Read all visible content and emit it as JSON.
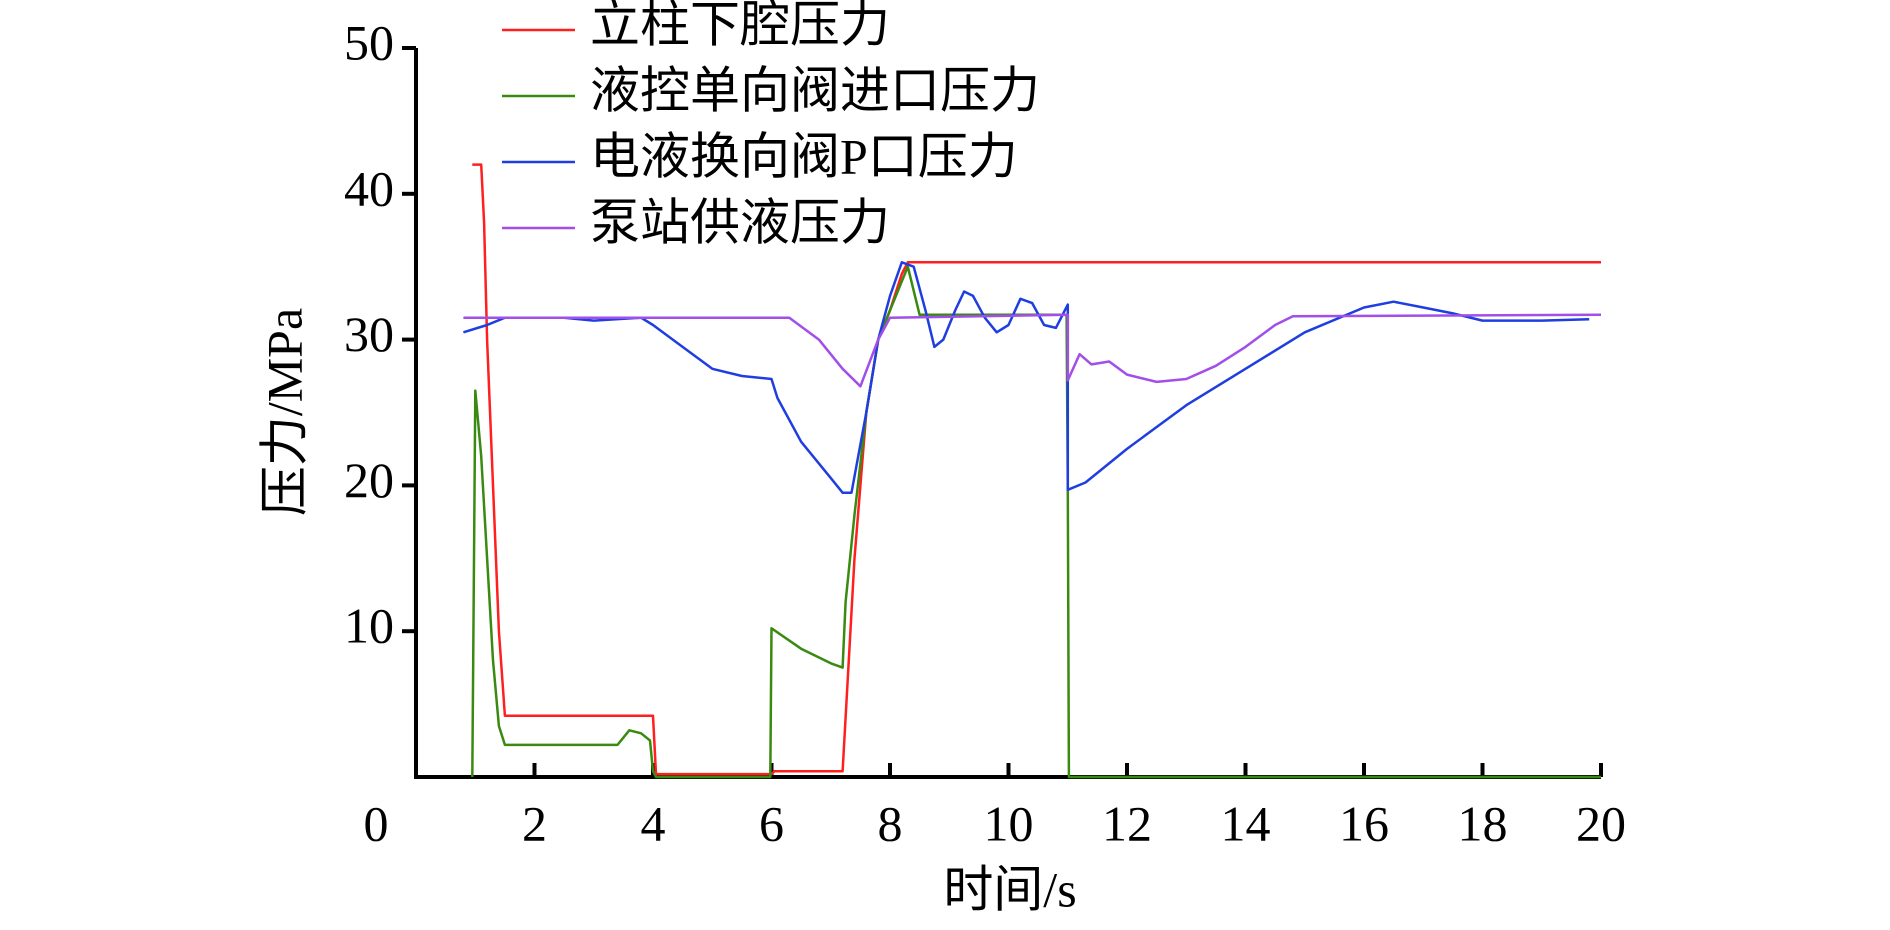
{
  "chart_data": {
    "type": "line",
    "xlabel": "时间/s",
    "ylabel": "压力/MPa",
    "xlim": [
      0,
      20
    ],
    "xticks": [
      0,
      2,
      4,
      6,
      8,
      10,
      12,
      14,
      16,
      18,
      20
    ],
    "ylim": [
      0,
      50
    ],
    "yticks": [
      10,
      20,
      30,
      40,
      50
    ],
    "legend": "top-left",
    "series": [
      {
        "name": "立柱下腔压力",
        "color": "#ff1f1f",
        "x": [
          0.95,
          1.1,
          1.15,
          1.2,
          1.3,
          1.4,
          1.5,
          4.0,
          4.05,
          6.0,
          6.05,
          7.2,
          7.4,
          7.6,
          7.8,
          8.0,
          8.2,
          8.3,
          20
        ],
        "values": [
          42,
          42,
          38,
          30,
          20,
          10,
          4.2,
          4.2,
          0.2,
          0.2,
          0.4,
          0.4,
          15,
          25,
          30,
          32,
          34.5,
          35.3,
          35.3
        ]
      },
      {
        "name": "液控单向阀进口压力",
        "color": "#3a8a12",
        "x": [
          0.95,
          1.0,
          1.1,
          1.2,
          1.3,
          1.4,
          1.5,
          3.4,
          3.6,
          3.8,
          3.95,
          4.0,
          4.05,
          5.98,
          6.0,
          6.5,
          7.0,
          7.2,
          7.25,
          7.4,
          7.6,
          7.8,
          8.0,
          8.3,
          8.5,
          10.98,
          11.0,
          11.02,
          20
        ],
        "values": [
          0,
          26.5,
          22,
          15,
          8,
          3.5,
          2.2,
          2.2,
          3.2,
          3.0,
          2.5,
          0.4,
          0,
          0,
          10.2,
          8.8,
          7.8,
          7.5,
          12,
          18,
          25,
          30,
          32,
          35,
          31.7,
          31.7,
          19.8,
          0,
          0
        ]
      },
      {
        "name": "电液换向阀P口压力",
        "color": "#1f3ee0",
        "x": [
          0.8,
          1.2,
          1.5,
          2.5,
          3.0,
          3.8,
          4.0,
          4.5,
          5.0,
          5.5,
          6.0,
          6.1,
          6.5,
          7.0,
          7.2,
          7.35,
          7.6,
          7.8,
          8.0,
          8.2,
          8.4,
          8.6,
          8.75,
          8.9,
          9.1,
          9.25,
          9.4,
          9.6,
          9.8,
          10.0,
          10.2,
          10.4,
          10.6,
          10.8,
          11.0,
          11.0,
          11.3,
          12,
          13,
          14,
          15,
          16,
          16.5,
          17,
          17.5,
          18,
          19,
          19.8
        ],
        "values": [
          30.5,
          31,
          31.5,
          31.5,
          31.3,
          31.5,
          31,
          29.5,
          28,
          27.5,
          27.3,
          26,
          23,
          20.5,
          19.5,
          19.5,
          25,
          30,
          33,
          35.3,
          35,
          32,
          29.5,
          30,
          32,
          33.3,
          33,
          31.5,
          30.5,
          31,
          32.8,
          32.5,
          31,
          30.8,
          32.4,
          19.7,
          20.2,
          22.5,
          25.5,
          28,
          30.5,
          32.2,
          32.6,
          32.2,
          31.8,
          31.3,
          31.3,
          31.4
        ]
      },
      {
        "name": "泵站供液压力",
        "color": "#a24ee8",
        "x": [
          0.8,
          6.3,
          6.8,
          7.2,
          7.5,
          7.8,
          8.0,
          11.0,
          11.0,
          11.2,
          11.4,
          11.7,
          12,
          12.5,
          13,
          13.5,
          14,
          14.5,
          14.8,
          20
        ],
        "values": [
          31.5,
          31.5,
          30,
          28,
          26.8,
          30,
          31.5,
          31.7,
          27.2,
          29,
          28.3,
          28.5,
          27.6,
          27.1,
          27.3,
          28.2,
          29.5,
          31,
          31.6,
          31.7
        ]
      }
    ]
  }
}
